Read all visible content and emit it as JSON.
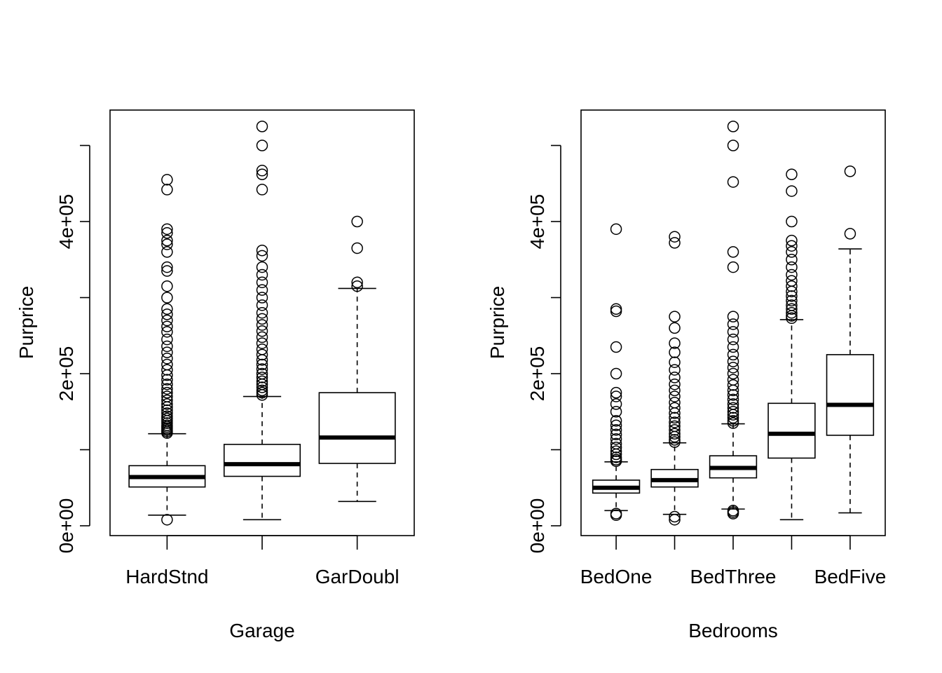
{
  "chart_data": [
    {
      "type": "boxplot",
      "xlabel": "Garage",
      "ylabel": "Purprice",
      "ylim": [
        -5000,
        540000
      ],
      "yticks": [
        0,
        100000,
        200000,
        300000,
        400000,
        500000
      ],
      "ytick_labels": [
        "0e+00",
        "",
        "2e+05",
        "",
        "4e+05",
        ""
      ],
      "categories": [
        "HardStnd",
        "",
        "GarDoubl"
      ],
      "grid": false,
      "boxes": [
        {
          "whisker_low": 14000,
          "q1": 51000,
          "median": 64000,
          "q3": 79000,
          "whisker_high": 121000,
          "outliers": [
            8000,
            122000,
            124000,
            126000,
            128000,
            130000,
            132000,
            135000,
            138000,
            141000,
            144000,
            148000,
            152000,
            156000,
            160000,
            165000,
            170000,
            175000,
            180000,
            186000,
            192000,
            198000,
            205000,
            212000,
            220000,
            228000,
            236000,
            245000,
            255000,
            262000,
            270000,
            278000,
            285000,
            300000,
            315000,
            335000,
            340000,
            360000,
            370000,
            375000,
            385000,
            390000,
            442000,
            455000
          ]
        },
        {
          "whisker_low": 8000,
          "q1": 65000,
          "median": 81000,
          "q3": 107000,
          "whisker_high": 170000,
          "outliers": [
            172000,
            175000,
            178000,
            182000,
            186000,
            190000,
            195000,
            200000,
            206000,
            212000,
            218000,
            225000,
            232000,
            240000,
            248000,
            256000,
            264000,
            272000,
            280000,
            290000,
            300000,
            310000,
            320000,
            330000,
            340000,
            355000,
            362000,
            442000,
            462000,
            467000,
            500000,
            525000
          ]
        },
        {
          "whisker_low": 32000,
          "q1": 82000,
          "median": 116000,
          "q3": 175000,
          "whisker_high": 312000,
          "outliers": [
            315000,
            320000,
            365000,
            400000
          ]
        }
      ]
    },
    {
      "type": "boxplot",
      "xlabel": "Bedrooms",
      "ylabel": "Purprice",
      "ylim": [
        -5000,
        540000
      ],
      "yticks": [
        0,
        100000,
        200000,
        300000,
        400000,
        500000
      ],
      "ytick_labels": [
        "0e+00",
        "",
        "2e+05",
        "",
        "4e+05",
        ""
      ],
      "categories": [
        "BedOne",
        "",
        "BedThree",
        "",
        "BedFive"
      ],
      "grid": false,
      "boxes": [
        {
          "whisker_low": 20000,
          "q1": 43000,
          "median": 50000,
          "q3": 60000,
          "whisker_high": 84000,
          "outliers": [
            14000,
            16000,
            85000,
            87000,
            90000,
            94000,
            98000,
            103000,
            108000,
            114000,
            120000,
            126000,
            132000,
            138000,
            150000,
            160000,
            170000,
            175000,
            200000,
            235000,
            282000,
            285000,
            390000
          ]
        },
        {
          "whisker_low": 15000,
          "q1": 51000,
          "median": 60000,
          "q3": 74000,
          "whisker_high": 109000,
          "outliers": [
            8000,
            12000,
            110000,
            113000,
            117000,
            121000,
            126000,
            131000,
            136000,
            142000,
            148000,
            155000,
            162000,
            170000,
            178000,
            186000,
            195000,
            205000,
            215000,
            228000,
            240000,
            260000,
            275000,
            372000,
            380000
          ]
        },
        {
          "whisker_low": 22000,
          "q1": 63000,
          "median": 76000,
          "q3": 92000,
          "whisker_high": 134000,
          "outliers": [
            16000,
            18000,
            20000,
            135000,
            138000,
            142000,
            146000,
            150000,
            155000,
            160000,
            166000,
            172000,
            178000,
            185000,
            192000,
            200000,
            208000,
            216000,
            225000,
            235000,
            245000,
            255000,
            265000,
            275000,
            340000,
            360000,
            452000,
            500000,
            525000
          ]
        },
        {
          "whisker_low": 8000,
          "q1": 89000,
          "median": 121000,
          "q3": 161000,
          "whisker_high": 271000,
          "outliers": [
            273000,
            276000,
            280000,
            285000,
            290000,
            296000,
            302000,
            308000,
            315000,
            322000,
            330000,
            340000,
            350000,
            360000,
            368000,
            375000,
            400000,
            440000,
            462000
          ]
        },
        {
          "whisker_low": 17000,
          "q1": 119000,
          "median": 159000,
          "q3": 225000,
          "whisker_high": 364000,
          "outliers": [
            384000,
            466000
          ]
        }
      ]
    }
  ]
}
